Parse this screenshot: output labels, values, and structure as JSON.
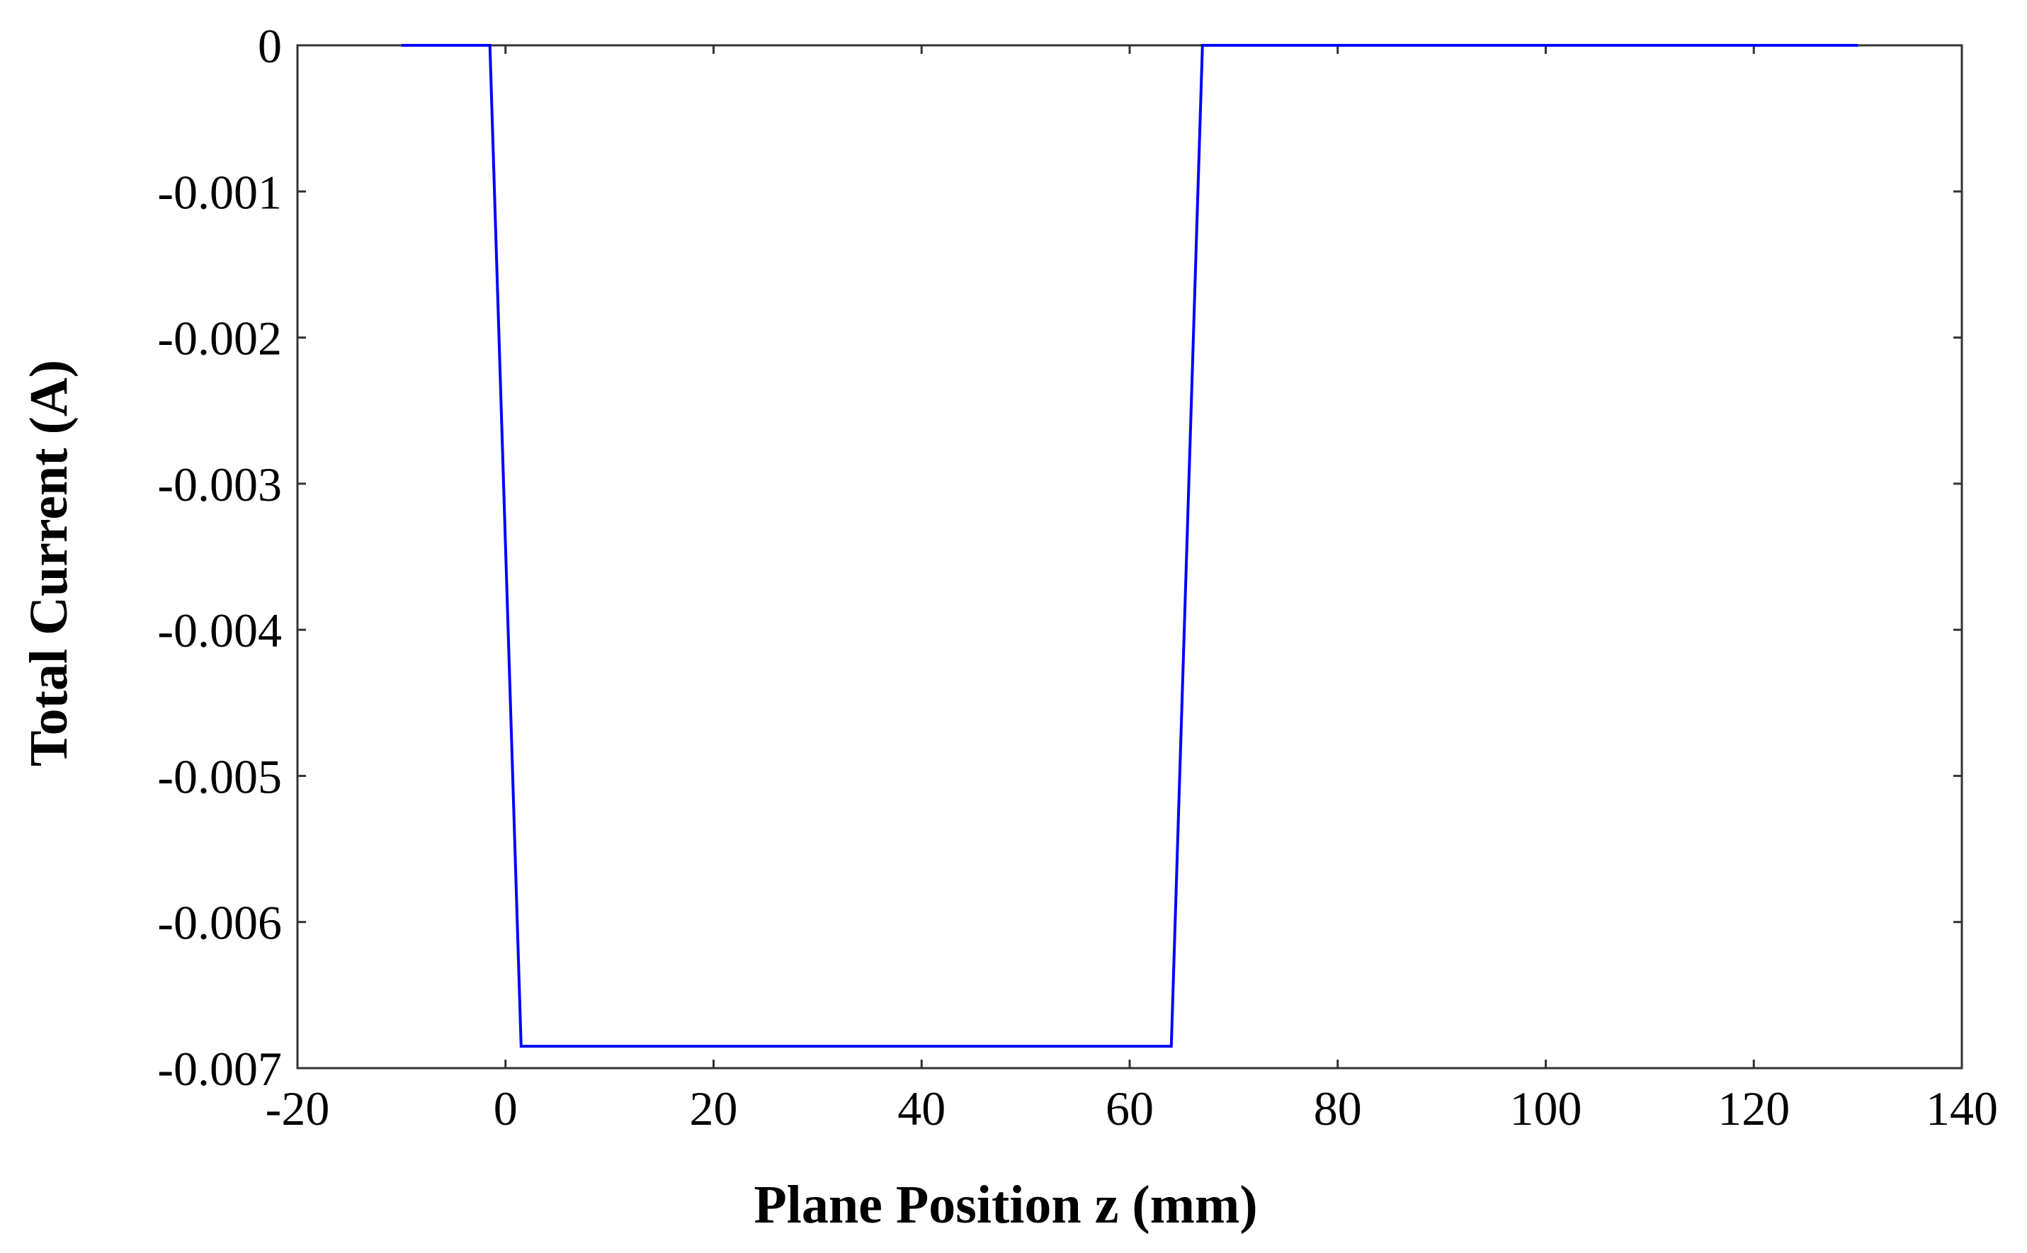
{
  "chart_data": {
    "type": "line",
    "title": "",
    "xlabel": "Plane Position z (mm)",
    "ylabel": "Total Current (A)",
    "xlim": [
      -20,
      140
    ],
    "ylim": [
      -0.007,
      0
    ],
    "x_ticks": [
      -20,
      0,
      20,
      40,
      60,
      80,
      100,
      120,
      140
    ],
    "y_ticks": [
      0,
      -0.001,
      -0.002,
      -0.003,
      -0.004,
      -0.005,
      -0.006,
      -0.007
    ],
    "x_tick_labels": [
      "-20",
      "0",
      "20",
      "40",
      "60",
      "80",
      "100",
      "120",
      "140"
    ],
    "y_tick_labels": [
      "0",
      "-0.001",
      "-0.002",
      "-0.003",
      "-0.004",
      "-0.005",
      "-0.006",
      "-0.007"
    ],
    "grid": false,
    "legend": "none",
    "series": [
      {
        "color": "#0000ff",
        "x": [
          -10,
          -1.5,
          1.5,
          64,
          67,
          130
        ],
        "y": [
          0,
          0,
          -0.00685,
          -0.00685,
          0,
          0
        ]
      }
    ]
  }
}
